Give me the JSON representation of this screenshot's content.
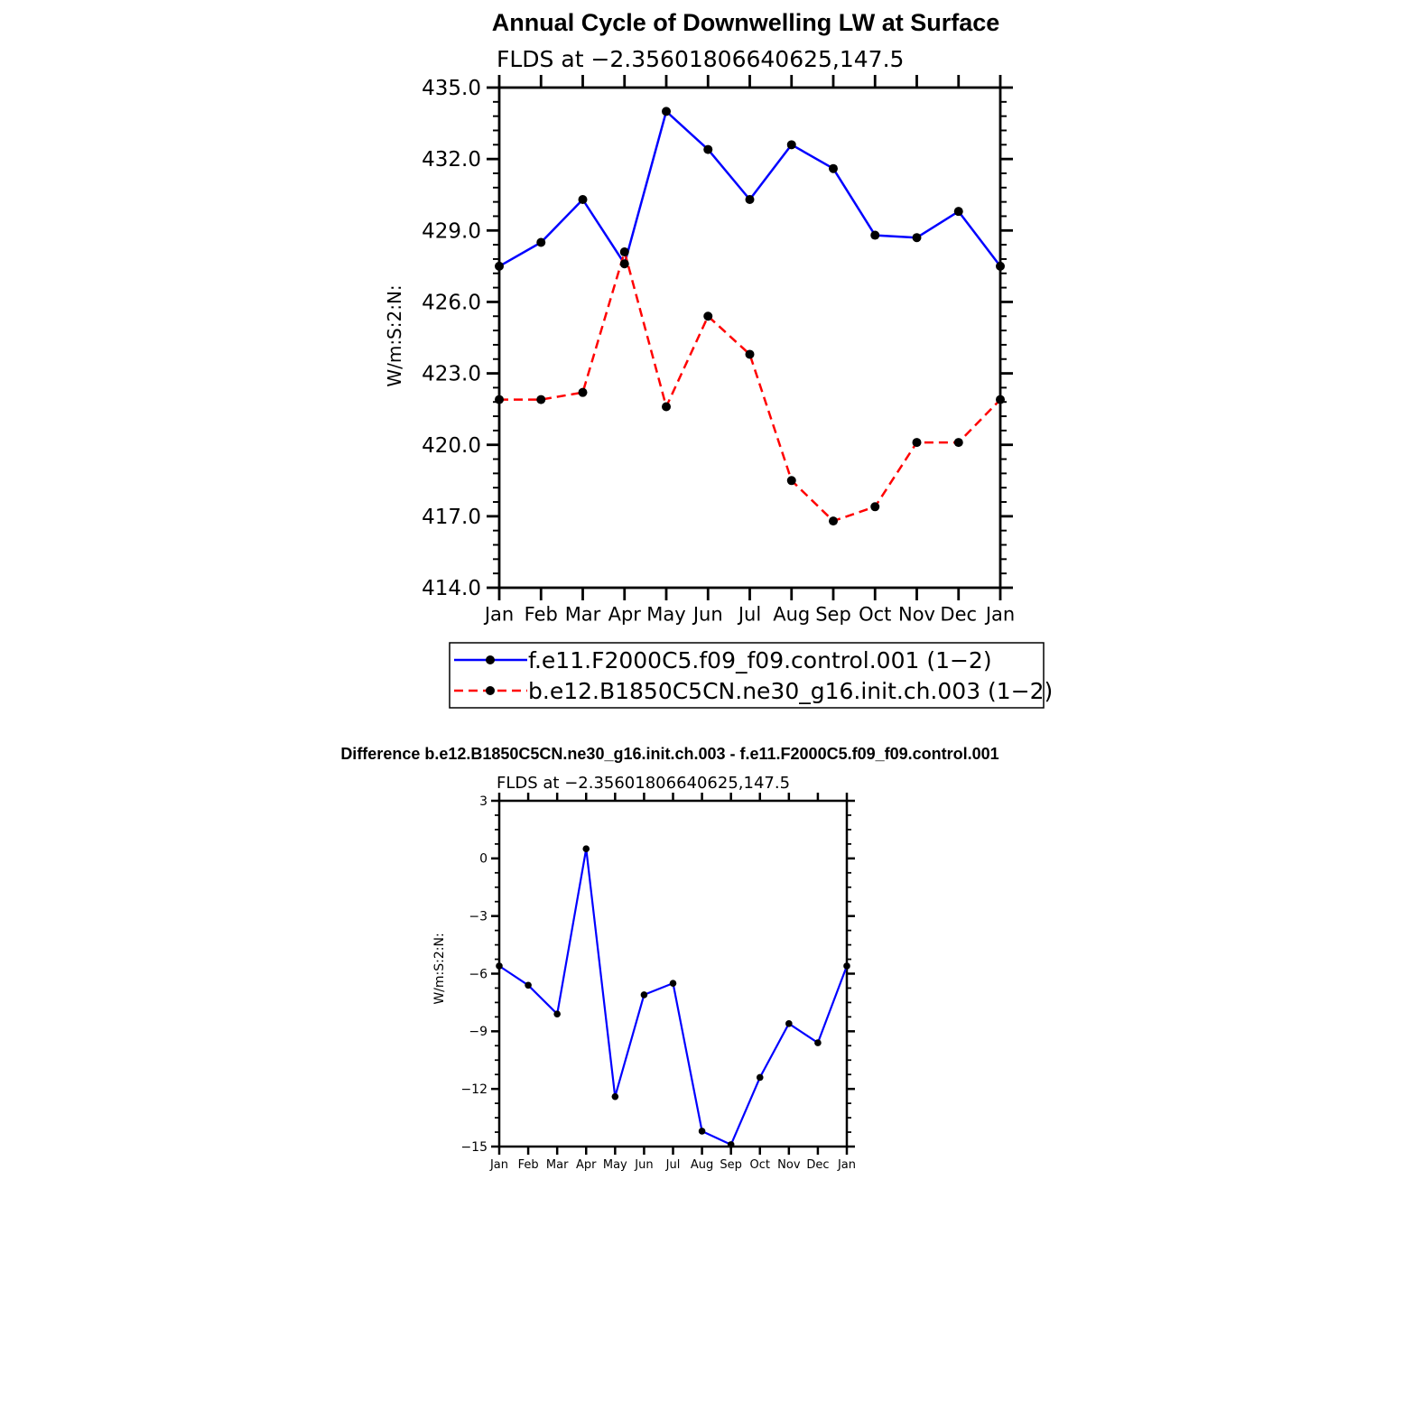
{
  "colors": {
    "series1": "#0000ff",
    "series2": "#ff0000",
    "marker": "#000000",
    "axis": "#000000",
    "background": "#ffffff"
  },
  "chart_data": [
    {
      "type": "line",
      "title": "Annual Cycle of Downwelling LW at Surface",
      "subtitle": "FLDS at −2.35601806640625,147.5",
      "xlabel": "",
      "ylabel": "W/m:S:2:N:",
      "categories": [
        "Jan",
        "Feb",
        "Mar",
        "Apr",
        "May",
        "Jun",
        "Jul",
        "Aug",
        "Sep",
        "Oct",
        "Nov",
        "Dec",
        "Jan"
      ],
      "ylim": [
        414.0,
        435.0
      ],
      "yticks": [
        "414.0",
        "417.0",
        "420.0",
        "423.0",
        "426.0",
        "429.0",
        "432.0",
        "435.0"
      ],
      "grid": false,
      "legend_position": "bottom",
      "series": [
        {
          "name": "f.e11.F2000C5.f09_f09.control.001 (1−2)",
          "line_style": "solid",
          "values": [
            427.5,
            428.5,
            430.3,
            427.6,
            434.0,
            432.4,
            430.3,
            432.6,
            431.6,
            428.8,
            428.7,
            429.8,
            427.5
          ]
        },
        {
          "name": "b.e12.B1850C5CN.ne30_g16.init.ch.003 (1−2)",
          "line_style": "dashed",
          "values": [
            421.9,
            421.9,
            422.2,
            428.1,
            421.6,
            425.4,
            423.8,
            418.5,
            416.8,
            417.4,
            420.1,
            420.1,
            421.9
          ]
        }
      ]
    },
    {
      "type": "line",
      "title": "Difference b.e12.B1850C5CN.ne30_g16.init.ch.003 - f.e11.F2000C5.f09_f09.control.001",
      "subtitle": "FLDS at −2.35601806640625,147.5",
      "xlabel": "",
      "ylabel": "W/m:S:2:N:",
      "categories": [
        "Jan",
        "Feb",
        "Mar",
        "Apr",
        "May",
        "Jun",
        "Jul",
        "Aug",
        "Sep",
        "Oct",
        "Nov",
        "Dec",
        "Jan"
      ],
      "ylim": [
        -15,
        3
      ],
      "yticks": [
        "−15",
        "−12",
        "−9",
        "−6",
        "−3",
        "0",
        "3"
      ],
      "grid": false,
      "series": [
        {
          "line_style": "solid",
          "values": [
            -5.6,
            -6.6,
            -8.1,
            0.5,
            -12.4,
            -7.1,
            -6.5,
            -14.2,
            -14.9,
            -11.4,
            -8.6,
            -9.6,
            -5.6
          ]
        }
      ]
    }
  ]
}
